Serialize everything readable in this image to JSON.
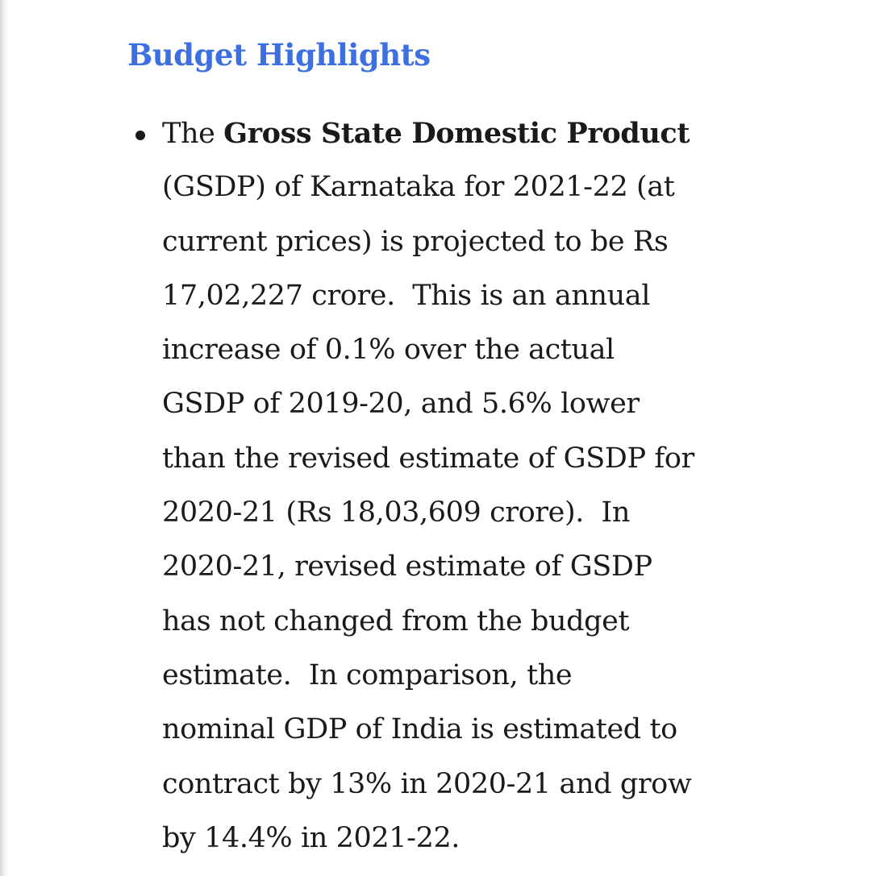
{
  "section": {
    "heading": "Budget Highlights"
  },
  "bullet": {
    "lead": "The ",
    "term": "Gross State Domestic Product",
    "lines": [
      "(GSDP) of Karnataka for 2021-22 (at",
      "current prices) is projected to be Rs",
      "17,02,227 crore.  This is an annual",
      "increase of 0.1% over the actual",
      "GSDP of 2019-20, and 5.6% lower",
      "than the revised estimate of GSDP for",
      "2020-21 (Rs 18,03,609 crore).  In",
      "2020-21, revised estimate of GSDP",
      "has not changed from the budget",
      "estimate.  In comparison, the",
      "nominal GDP of India is estimated to",
      "contract by 13% in 2020-21 and grow",
      "by 14.4% in 2021-22."
    ]
  }
}
